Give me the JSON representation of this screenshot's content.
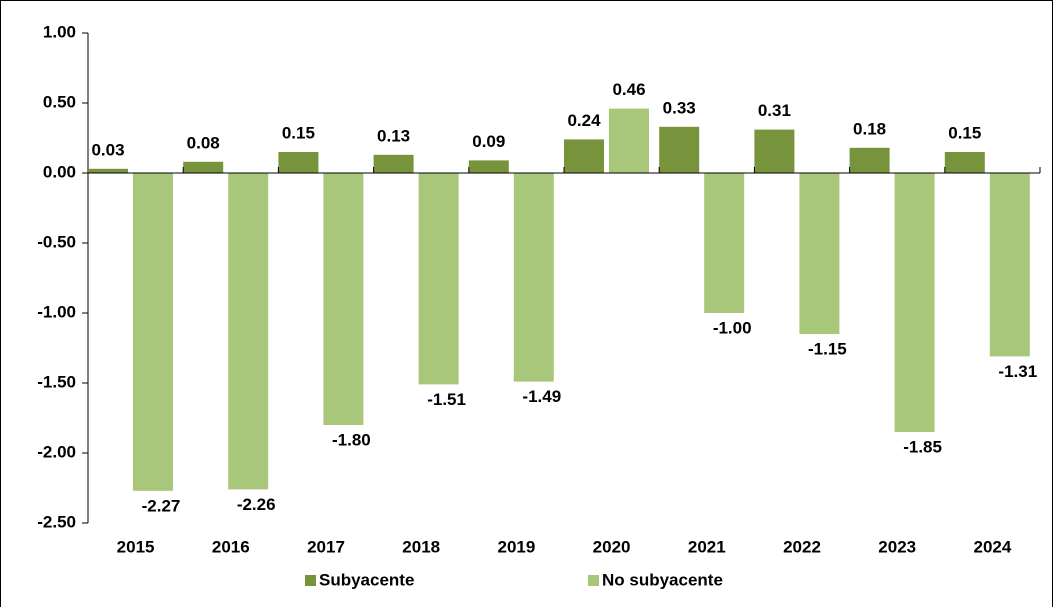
{
  "chart_data": {
    "type": "bar",
    "categories": [
      "2015",
      "2016",
      "2017",
      "2018",
      "2019",
      "2020",
      "2021",
      "2022",
      "2023",
      "2024"
    ],
    "series": [
      {
        "name": "Subyacente",
        "color": "#77933c",
        "values": [
          0.03,
          0.08,
          0.15,
          0.13,
          0.09,
          0.24,
          0.33,
          0.31,
          0.18,
          0.15
        ],
        "value_labels": [
          "0.03",
          "0.08",
          "0.15",
          "0.13",
          "0.09",
          "0.24",
          "0.33",
          "0.31",
          "0.18",
          "0.15"
        ]
      },
      {
        "name": "No subyacente",
        "color": "#a9c77a",
        "values": [
          -2.27,
          -2.26,
          -1.8,
          -1.51,
          -1.49,
          0.46,
          -1.0,
          -1.15,
          -1.85,
          -1.31
        ],
        "value_labels": [
          "-2.27",
          "-2.26",
          "-1.80",
          "-1.51",
          "-1.49",
          "0.46",
          "-1.00",
          "-1.15",
          "-1.85",
          "-1.31"
        ]
      }
    ],
    "ylim": [
      -2.5,
      1.0
    ],
    "yticks": [
      {
        "value": -2.5,
        "label": "-2.50"
      },
      {
        "value": -2.0,
        "label": "-2.00"
      },
      {
        "value": -1.5,
        "label": "-1.50"
      },
      {
        "value": -1.0,
        "label": "-1.00"
      },
      {
        "value": -0.5,
        "label": "-0.50"
      },
      {
        "value": 0,
        "label": "0.00"
      },
      {
        "value": 0.5,
        "label": "0.50"
      },
      {
        "value": 1.0,
        "label": "1.00"
      }
    ],
    "grid": false,
    "legend": "bottom"
  }
}
